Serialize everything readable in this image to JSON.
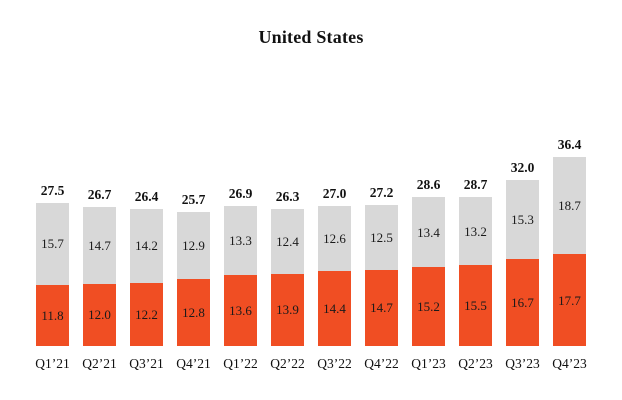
{
  "chart_data": {
    "type": "bar",
    "stacked": true,
    "title": "United States",
    "categories": [
      "Q1’21",
      "Q2’21",
      "Q3’21",
      "Q4’21",
      "Q1’22",
      "Q2’22",
      "Q3’22",
      "Q4’22",
      "Q1’23",
      "Q2’23",
      "Q3’23",
      "Q4’23"
    ],
    "series": [
      {
        "name": "bottom-orange-segment",
        "color": "#F04E23",
        "values": [
          11.8,
          12.0,
          12.2,
          12.8,
          13.6,
          13.9,
          14.4,
          14.7,
          15.2,
          15.5,
          16.7,
          17.7
        ]
      },
      {
        "name": "top-gray-segment",
        "color": "#D8D8D8",
        "values": [
          15.7,
          14.7,
          14.2,
          12.9,
          13.3,
          12.4,
          12.6,
          12.5,
          13.4,
          13.2,
          15.3,
          18.7
        ]
      }
    ],
    "totals": [
      27.5,
      26.7,
      26.4,
      25.7,
      26.9,
      26.3,
      27.0,
      27.2,
      28.6,
      28.7,
      32.0,
      36.4
    ],
    "xlabel": "",
    "ylabel": "",
    "ylim": [
      0,
      40
    ],
    "grid": false,
    "y_axis_visible": false,
    "legend": "none",
    "value_labels": "inside-segments",
    "total_labels": "above-bars",
    "label_color": "#1a1a1a",
    "background_color": "#ffffff"
  }
}
